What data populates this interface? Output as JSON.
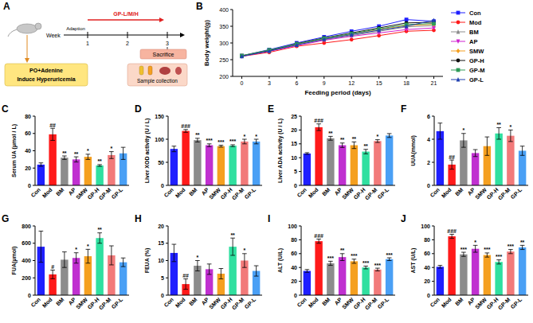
{
  "diagram": {
    "panel": "A",
    "week_label": "Week",
    "adaption": "Adaption",
    "weeks": [
      1,
      2,
      3
    ],
    "treatment": "GP-L/M/H",
    "induction": [
      "PO+Adenine",
      "Induce Hyperuricemia"
    ],
    "end": "Sacrifice",
    "collection": "Sample collection"
  },
  "chart_data": [
    {
      "type": "line",
      "panel": "B",
      "x_label": "Feeding period (days)",
      "y_label": "Body weight(g)",
      "x": [
        0,
        3,
        6,
        9,
        12,
        15,
        18,
        21
      ],
      "xlim": [
        -1,
        22
      ],
      "xticks": [
        0,
        3,
        6,
        9,
        12,
        15,
        18,
        21
      ],
      "ylim": [
        200,
        400
      ],
      "yticks": [
        200,
        250,
        300,
        350,
        400
      ],
      "grid": false,
      "legend": "right",
      "series": [
        {
          "name": "Con",
          "color": "#1f1fff",
          "marker": "square",
          "values": [
            262,
            280,
            300,
            318,
            335,
            350,
            370,
            365
          ]
        },
        {
          "name": "Mod",
          "color": "#ff1a1a",
          "marker": "circle",
          "values": [
            260,
            272,
            290,
            300,
            310,
            322,
            335,
            338
          ]
        },
        {
          "name": "BM",
          "color": "#8c8c8c",
          "marker": "triangle",
          "values": [
            261,
            276,
            295,
            310,
            322,
            335,
            348,
            352
          ]
        },
        {
          "name": "AP",
          "color": "#d020d0",
          "marker": "triangle-down",
          "values": [
            260,
            275,
            292,
            308,
            320,
            330,
            340,
            345
          ]
        },
        {
          "name": "SMW",
          "color": "#f5a020",
          "marker": "diamond",
          "values": [
            262,
            278,
            296,
            312,
            326,
            340,
            352,
            356
          ]
        },
        {
          "name": "GP-H",
          "color": "#111111",
          "marker": "circle",
          "values": [
            261,
            277,
            298,
            315,
            330,
            345,
            360,
            362
          ]
        },
        {
          "name": "GP-M",
          "color": "#2e9b57",
          "marker": "square",
          "values": [
            262,
            279,
            297,
            314,
            328,
            342,
            355,
            358
          ]
        },
        {
          "name": "GP-L",
          "color": "#2040b0",
          "marker": "triangle",
          "values": [
            260,
            276,
            294,
            311,
            325,
            338,
            350,
            368
          ]
        }
      ]
    },
    {
      "type": "bar",
      "panel": "C",
      "y_label": "Serum UA (μmol / L)",
      "categories": [
        "Con",
        "Mod",
        "BM",
        "AP",
        "SMW",
        "GP-H",
        "GP-M",
        "GP-L"
      ],
      "colors": [
        "#1f1fff",
        "#ff1a1a",
        "#8c8c8c",
        "#c030d0",
        "#f5a020",
        "#30e0a0",
        "#f27a7a",
        "#4aa0f5"
      ],
      "values": [
        24,
        59,
        32,
        30,
        33,
        23,
        35,
        37
      ],
      "errors": [
        2,
        7,
        2,
        3,
        3,
        1,
        4,
        7
      ],
      "annotations": [
        null,
        "##",
        "**",
        "**",
        "*",
        "**",
        "*",
        null
      ],
      "ylim": [
        0,
        80
      ],
      "yticks": [
        0,
        20,
        40,
        60,
        80
      ]
    },
    {
      "type": "bar",
      "panel": "D",
      "y_label": "Liver XOD activity (U / L)",
      "categories": [
        "Con",
        "Mod",
        "BM",
        "AP",
        "SMW",
        "GP-H",
        "GP-M",
        "GP-L"
      ],
      "colors": [
        "#1f1fff",
        "#ff1a1a",
        "#8c8c8c",
        "#c030d0",
        "#f5a020",
        "#30e0a0",
        "#f27a7a",
        "#4aa0f5"
      ],
      "values": [
        79,
        118,
        98,
        87,
        85,
        86,
        95,
        95
      ],
      "errors": [
        6,
        3,
        4,
        3,
        2,
        2,
        5,
        5
      ],
      "annotations": [
        null,
        "###",
        "**",
        "***",
        "***",
        "***",
        "*",
        "*"
      ],
      "ylim": [
        0,
        150
      ],
      "yticks": [
        0,
        50,
        100,
        150
      ]
    },
    {
      "type": "bar",
      "panel": "E",
      "y_label": "Liver ADA activity (U / L)",
      "categories": [
        "Con",
        "Mod",
        "BM",
        "AP",
        "SMW",
        "GP-H",
        "GP-M",
        "GP-L"
      ],
      "colors": [
        "#1f1fff",
        "#ff1a1a",
        "#8c8c8c",
        "#c030d0",
        "#f5a020",
        "#30e0a0",
        "#f27a7a",
        "#4aa0f5"
      ],
      "values": [
        11.5,
        21,
        17,
        14.5,
        14.5,
        12.2,
        16,
        18
      ],
      "errors": [
        0.3,
        1.2,
        0.7,
        0.8,
        1.2,
        0.8,
        0.5,
        0.7
      ],
      "annotations": [
        null,
        "###",
        "**",
        "**",
        "**",
        "**",
        "*",
        null
      ],
      "ylim": [
        0,
        25
      ],
      "yticks": [
        0,
        5,
        10,
        15,
        20,
        25
      ]
    },
    {
      "type": "bar",
      "panel": "F",
      "y_label": "UUA(mmol)",
      "categories": [
        "Con",
        "Mod",
        "BM",
        "AP",
        "SMW",
        "GP-H",
        "GP-M",
        "GP-L"
      ],
      "colors": [
        "#1f1fff",
        "#ff1a1a",
        "#8c8c8c",
        "#c030d0",
        "#f5a020",
        "#30e0a0",
        "#f27a7a",
        "#4aa0f5"
      ],
      "values": [
        4.7,
        1.8,
        3.9,
        2.8,
        3.4,
        4.5,
        4.3,
        3.0
      ],
      "errors": [
        0.7,
        0.4,
        0.6,
        0.3,
        0.8,
        0.5,
        0.5,
        0.4
      ],
      "annotations": [
        null,
        "##",
        "*",
        null,
        null,
        "**",
        "*",
        null
      ],
      "ylim": [
        0,
        6
      ],
      "yticks": [
        0,
        2,
        4,
        6
      ]
    },
    {
      "type": "bar",
      "panel": "G",
      "y_label": "FUA(μmol)",
      "categories": [
        "Con",
        "Mod",
        "BM",
        "AP",
        "SMW",
        "GP-H",
        "GP-M",
        "GP-L"
      ],
      "colors": [
        "#1f1fff",
        "#ff1a1a",
        "#8c8c8c",
        "#c030d0",
        "#f5a020",
        "#30e0a0",
        "#f27a7a",
        "#4aa0f5"
      ],
      "values": [
        560,
        240,
        410,
        430,
        450,
        660,
        460,
        380
      ],
      "errors": [
        180,
        50,
        90,
        60,
        80,
        60,
        110,
        50
      ],
      "annotations": [
        null,
        "#",
        null,
        "*",
        "*",
        "**",
        null,
        null
      ],
      "ylim": [
        0,
        800
      ],
      "yticks": [
        0,
        200,
        400,
        600,
        800
      ]
    },
    {
      "type": "bar",
      "panel": "H",
      "y_label": "FEUA (%)",
      "categories": [
        "Con",
        "Mod",
        "BM",
        "AP",
        "SMW",
        "GP-H",
        "GP-M",
        "GP-L"
      ],
      "colors": [
        "#1f1fff",
        "#ff1a1a",
        "#8c8c8c",
        "#c030d0",
        "#f5a020",
        "#30e0a0",
        "#f27a7a",
        "#4aa0f5"
      ],
      "values": [
        12.2,
        3.2,
        8.5,
        7.5,
        6.2,
        14,
        10,
        7
      ],
      "errors": [
        2.5,
        1.5,
        1.5,
        1.5,
        1.5,
        2.5,
        2,
        1.5
      ],
      "annotations": [
        null,
        "##",
        "*",
        null,
        null,
        "**",
        "*",
        null
      ],
      "ylim": [
        0,
        20
      ],
      "yticks": [
        0,
        5,
        10,
        15,
        20
      ]
    },
    {
      "type": "bar",
      "panel": "I",
      "y_label": "ALT (U/L)",
      "categories": [
        "Con",
        "Mod",
        "BM",
        "AP",
        "SMW",
        "GP-H",
        "GP-M",
        "GP-L"
      ],
      "colors": [
        "#1f1fff",
        "#ff1a1a",
        "#8c8c8c",
        "#c030d0",
        "#f5a020",
        "#30e0a0",
        "#f27a7a",
        "#4aa0f5"
      ],
      "values": [
        35,
        78,
        46,
        55,
        49,
        40,
        37,
        52
      ],
      "errors": [
        2,
        3,
        3,
        5,
        3,
        2,
        2,
        2
      ],
      "annotations": [
        null,
        "###",
        "***",
        "**",
        "***",
        "***",
        "***",
        "***"
      ],
      "ylim": [
        0,
        100
      ],
      "yticks": [
        0,
        20,
        40,
        60,
        80,
        100
      ]
    },
    {
      "type": "bar",
      "panel": "J",
      "y_label": "AST (U/L)",
      "categories": [
        "Con",
        "Mod",
        "BM",
        "AP",
        "SMW",
        "GP-H",
        "GP-M",
        "GP-L"
      ],
      "colors": [
        "#1f1fff",
        "#ff1a1a",
        "#8c8c8c",
        "#c030d0",
        "#f5a020",
        "#30e0a0",
        "#f27a7a",
        "#4aa0f5"
      ],
      "values": [
        41,
        85,
        59,
        67,
        58,
        48,
        63,
        69
      ],
      "errors": [
        2,
        3,
        3,
        5,
        3,
        3,
        3,
        3
      ],
      "annotations": [
        null,
        "###",
        "***",
        "*",
        "***",
        "***",
        "***",
        "**"
      ],
      "ylim": [
        0,
        100
      ],
      "yticks": [
        0,
        20,
        40,
        60,
        80,
        100
      ]
    }
  ]
}
